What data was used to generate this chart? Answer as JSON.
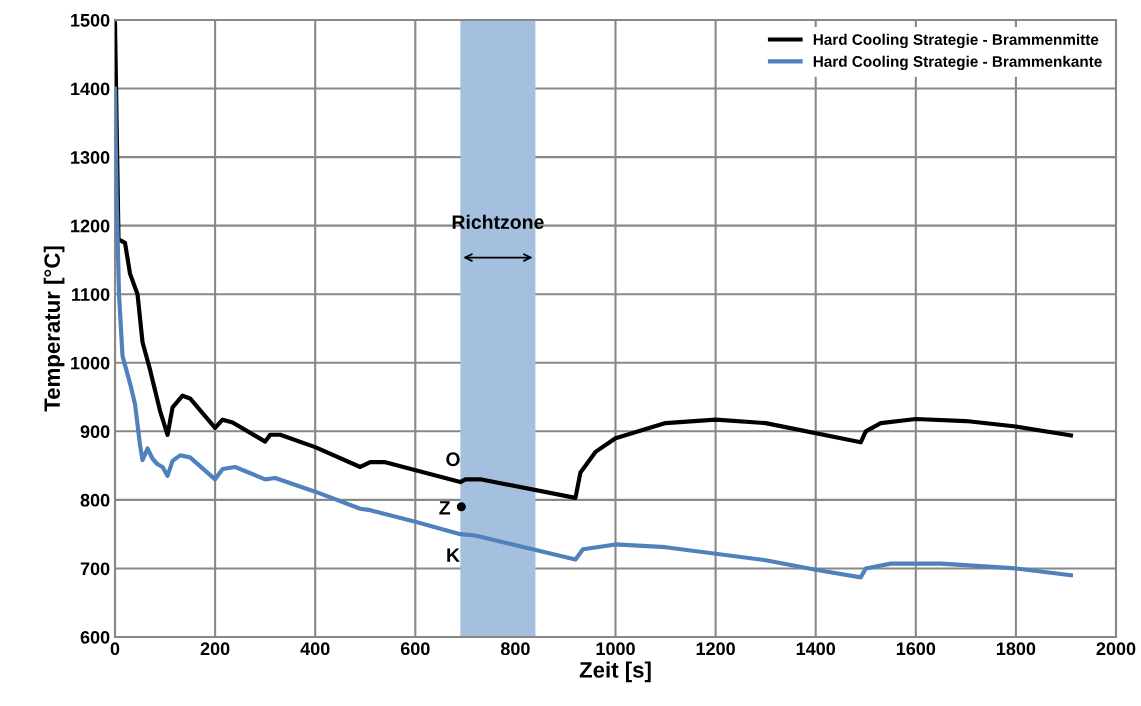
{
  "chart_data": {
    "type": "line",
    "xlabel": "Zeit [s]",
    "ylabel": "Temperatur [°C]",
    "xlim": [
      0,
      2000
    ],
    "xticks": [
      0,
      200,
      400,
      600,
      800,
      1000,
      1200,
      1400,
      1600,
      1800,
      2000
    ],
    "ylim": [
      600,
      1500
    ],
    "yticks": [
      600,
      700,
      800,
      900,
      1000,
      1100,
      1200,
      1300,
      1400,
      1500
    ],
    "grid": true,
    "legend": "top right",
    "bands": [
      {
        "axis": "x",
        "from": 690,
        "to": 840,
        "color": "#a5bfdf"
      }
    ],
    "annotations": [
      "Richtzone",
      "O",
      "Z",
      "K"
    ],
    "series": [
      {
        "name": "Hard Cooling Strategie - Brammenmitte",
        "color": "#000000",
        "x": [
          0,
          7,
          20,
          30,
          45,
          55,
          70,
          90,
          105,
          115,
          135,
          150,
          200,
          215,
          235,
          300,
          310,
          330,
          400,
          490,
          510,
          540,
          690,
          700,
          730,
          920,
          930,
          960,
          1000,
          1100,
          1200,
          1300,
          1490,
          1500,
          1530,
          1600,
          1700,
          1800,
          1910
        ],
        "values": [
          1495,
          1180,
          1175,
          1130,
          1100,
          1030,
          990,
          930,
          895,
          935,
          952,
          948,
          905,
          917,
          913,
          885,
          895,
          895,
          877,
          848,
          855,
          855,
          826,
          830,
          830,
          803,
          840,
          870,
          890,
          912,
          917,
          912,
          884,
          900,
          912,
          918,
          915,
          907,
          894
        ]
      },
      {
        "name": "Hard Cooling Strategie - Brammenkante",
        "color": "#4f81bd",
        "x": [
          0,
          3,
          8,
          15,
          30,
          40,
          50,
          55,
          65,
          75,
          85,
          95,
          105,
          115,
          130,
          150,
          200,
          215,
          240,
          300,
          320,
          400,
          490,
          510,
          600,
          690,
          720,
          920,
          935,
          1000,
          1100,
          1300,
          1400,
          1490,
          1500,
          1550,
          1650,
          1800,
          1910
        ],
        "values": [
          1400,
          1250,
          1100,
          1010,
          970,
          940,
          880,
          858,
          875,
          860,
          852,
          848,
          835,
          857,
          865,
          862,
          830,
          845,
          848,
          830,
          832,
          812,
          787,
          785,
          768,
          750,
          748,
          713,
          728,
          735,
          731,
          712,
          698,
          687,
          700,
          707,
          707,
          700,
          690
        ]
      },
      {
        "type": "scatter",
        "color": "#000000",
        "marker": "circle",
        "x": [
          692
        ],
        "values": [
          790
        ]
      }
    ]
  }
}
